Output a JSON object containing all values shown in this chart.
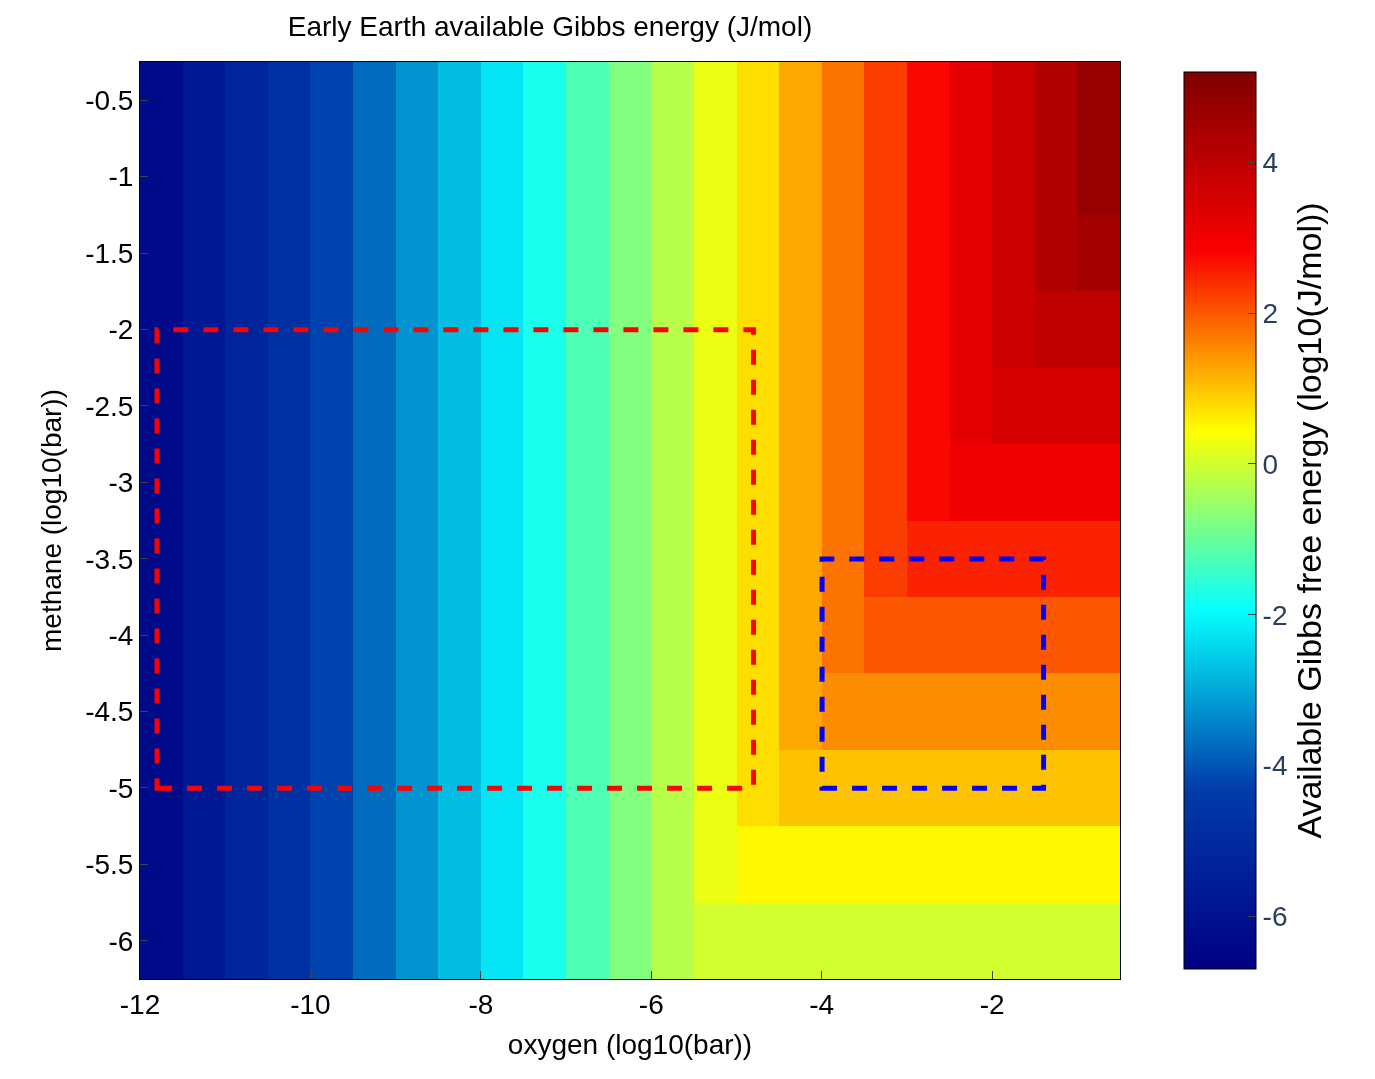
{
  "chart_data": {
    "type": "heatmap",
    "title": "Early Earth available Gibbs energy (J/mol)",
    "xlabel": "oxygen (log10(bar))",
    "ylabel": "methane (log10(bar))",
    "clabel": "Available Gibbs free energy (log10(J/mol))",
    "x": [
      -11.75,
      -11.25,
      -10.75,
      -10.25,
      -9.75,
      -9.25,
      -8.75,
      -8.25,
      -7.75,
      -7.25,
      -6.75,
      -6.25,
      -5.75,
      -5.25,
      -4.75,
      -4.25,
      -3.75,
      -3.25,
      -2.75,
      -2.25,
      -1.75,
      -1.25,
      -0.75
    ],
    "y_categories": [
      "-0.5",
      "-1",
      "-1.5",
      "-2",
      "-2.5",
      "-3",
      "-3.5",
      "-4",
      "-4.5",
      "-5",
      "-5.5",
      "-6"
    ],
    "cells": [
      [
        -6.25,
        -5.75,
        -5.25,
        -4.75,
        -4.25,
        -3.75,
        -3.25,
        -2.75,
        -2.25,
        -1.75,
        -1.25,
        -0.75,
        -0.25,
        0.25,
        0.75,
        1.25,
        1.75,
        2.25,
        2.75,
        3.25,
        3.75,
        4.25,
        4.75
      ],
      [
        -6.25,
        -5.75,
        -5.25,
        -4.75,
        -4.25,
        -3.75,
        -3.25,
        -2.75,
        -2.25,
        -1.75,
        -1.25,
        -0.75,
        -0.25,
        0.25,
        0.75,
        1.25,
        1.75,
        2.25,
        2.75,
        3.25,
        3.75,
        4.25,
        4.75
      ],
      [
        -6.25,
        -5.75,
        -5.25,
        -4.75,
        -4.25,
        -3.75,
        -3.25,
        -2.75,
        -2.25,
        -1.75,
        -1.25,
        -0.75,
        -0.25,
        0.25,
        0.75,
        1.25,
        1.75,
        2.25,
        2.75,
        3.25,
        3.75,
        4.25,
        4.5
      ],
      [
        -6.25,
        -5.75,
        -5.25,
        -4.75,
        -4.25,
        -3.75,
        -3.25,
        -2.75,
        -2.25,
        -1.75,
        -1.25,
        -0.75,
        -0.25,
        0.25,
        0.75,
        1.25,
        1.75,
        2.25,
        2.75,
        3.25,
        3.75,
        4,
        4
      ],
      [
        -6.25,
        -5.75,
        -5.25,
        -4.75,
        -4.25,
        -3.75,
        -3.25,
        -2.75,
        -2.25,
        -1.75,
        -1.25,
        -0.75,
        -0.25,
        0.25,
        0.75,
        1.25,
        1.75,
        2.25,
        2.75,
        3.25,
        3.5,
        3.5,
        3.5
      ],
      [
        -6.25,
        -5.75,
        -5.25,
        -4.75,
        -4.25,
        -3.75,
        -3.25,
        -2.75,
        -2.25,
        -1.75,
        -1.25,
        -0.75,
        -0.25,
        0.25,
        0.75,
        1.25,
        1.75,
        2.25,
        2.75,
        3,
        3,
        3,
        3
      ],
      [
        -6.25,
        -5.75,
        -5.25,
        -4.75,
        -4.25,
        -3.75,
        -3.25,
        -2.75,
        -2.25,
        -1.75,
        -1.25,
        -0.75,
        -0.25,
        0.25,
        0.75,
        1.25,
        1.75,
        2.25,
        2.5,
        2.5,
        2.5,
        2.5,
        2.5
      ],
      [
        -6.25,
        -5.75,
        -5.25,
        -4.75,
        -4.25,
        -3.75,
        -3.25,
        -2.75,
        -2.25,
        -1.75,
        -1.25,
        -0.75,
        -0.25,
        0.25,
        0.75,
        1.25,
        1.75,
        2,
        2,
        2,
        2,
        2,
        2
      ],
      [
        -6.25,
        -5.75,
        -5.25,
        -4.75,
        -4.25,
        -3.75,
        -3.25,
        -2.75,
        -2.25,
        -1.75,
        -1.25,
        -0.75,
        -0.25,
        0.25,
        0.75,
        1.25,
        1.5,
        1.5,
        1.5,
        1.5,
        1.5,
        1.5,
        1.5
      ],
      [
        -6.25,
        -5.75,
        -5.25,
        -4.75,
        -4.25,
        -3.75,
        -3.25,
        -2.75,
        -2.25,
        -1.75,
        -1.25,
        -0.75,
        -0.25,
        0.25,
        0.75,
        1,
        1,
        1,
        1,
        1,
        1,
        1,
        1
      ],
      [
        -6.25,
        -5.75,
        -5.25,
        -4.75,
        -4.25,
        -3.75,
        -3.25,
        -2.75,
        -2.25,
        -1.75,
        -1.25,
        -0.75,
        -0.25,
        0.25,
        0.5,
        0.5,
        0.5,
        0.5,
        0.5,
        0.5,
        0.5,
        0.5,
        0.5
      ],
      [
        -6.25,
        -5.75,
        -5.25,
        -4.75,
        -4.25,
        -3.75,
        -3.25,
        -2.75,
        -2.25,
        -1.75,
        -1.25,
        -0.75,
        -0.25,
        0,
        0,
        0,
        0,
        0,
        0,
        0,
        0,
        0,
        0
      ]
    ],
    "clim": [
      -6.7,
      5.2
    ],
    "cticks": [
      -6,
      -4,
      -2,
      0,
      2,
      4
    ],
    "xlim": [
      -12,
      -0.5
    ],
    "xticks": [
      -12,
      -10,
      -8,
      -6,
      -4,
      -2
    ]
  }
}
